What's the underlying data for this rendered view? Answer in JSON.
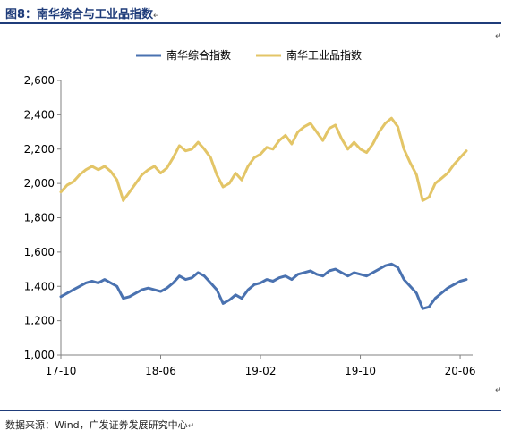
{
  "title": "图8：南华综合与工业品指数",
  "footer": "数据来源：Wind，广发证券发展研究中心",
  "para_mark": "↵",
  "chart_data": {
    "type": "line",
    "ylim": [
      1000,
      2600
    ],
    "yticks": [
      1000,
      1200,
      1400,
      1600,
      1800,
      2000,
      2200,
      2400,
      2600
    ],
    "ytick_labels": [
      "1,000",
      "1,200",
      "1,400",
      "1,600",
      "1,800",
      "2,000",
      "2,200",
      "2,400",
      "2,600"
    ],
    "xlim": [
      0,
      33
    ],
    "xticks": [
      0,
      8,
      16,
      24,
      32
    ],
    "xtick_labels": [
      "17-10",
      "18-06",
      "19-02",
      "19-10",
      "20-06"
    ],
    "legend_position": "top-center",
    "grid": false,
    "series": [
      {
        "name": "南华综合指数",
        "color": "#4a72b0",
        "x": [
          0,
          0.5,
          1,
          1.5,
          2,
          2.5,
          3,
          3.5,
          4,
          4.5,
          5,
          5.5,
          6,
          6.5,
          7,
          7.5,
          8,
          8.5,
          9,
          9.5,
          10,
          10.5,
          11,
          11.5,
          12,
          12.5,
          13,
          13.5,
          14,
          14.5,
          15,
          15.5,
          16,
          16.5,
          17,
          17.5,
          18,
          18.5,
          19,
          19.5,
          20,
          20.5,
          21,
          21.5,
          22,
          22.5,
          23,
          23.5,
          24,
          24.5,
          25,
          25.5,
          26,
          26.5,
          27,
          27.5,
          28,
          28.5,
          29,
          29.5,
          30,
          30.5,
          31,
          31.5,
          32,
          32.5
        ],
        "values": [
          1340,
          1360,
          1380,
          1400,
          1420,
          1430,
          1420,
          1440,
          1420,
          1400,
          1330,
          1340,
          1360,
          1380,
          1390,
          1380,
          1370,
          1390,
          1420,
          1460,
          1440,
          1450,
          1480,
          1460,
          1420,
          1380,
          1300,
          1320,
          1350,
          1330,
          1380,
          1410,
          1420,
          1440,
          1430,
          1450,
          1460,
          1440,
          1470,
          1480,
          1490,
          1470,
          1460,
          1490,
          1500,
          1480,
          1460,
          1480,
          1470,
          1460,
          1480,
          1500,
          1520,
          1530,
          1510,
          1440,
          1400,
          1360,
          1270,
          1280,
          1330,
          1360,
          1390,
          1410,
          1430,
          1440
        ]
      },
      {
        "name": "南华工业品指数",
        "color": "#e3c567",
        "x": [
          0,
          0.5,
          1,
          1.5,
          2,
          2.5,
          3,
          3.5,
          4,
          4.5,
          5,
          5.5,
          6,
          6.5,
          7,
          7.5,
          8,
          8.5,
          9,
          9.5,
          10,
          10.5,
          11,
          11.5,
          12,
          12.5,
          13,
          13.5,
          14,
          14.5,
          15,
          15.5,
          16,
          16.5,
          17,
          17.5,
          18,
          18.5,
          19,
          19.5,
          20,
          20.5,
          21,
          21.5,
          22,
          22.5,
          23,
          23.5,
          24,
          24.5,
          25,
          25.5,
          26,
          26.5,
          27,
          27.5,
          28,
          28.5,
          29,
          29.5,
          30,
          30.5,
          31,
          31.5,
          32,
          32.5
        ],
        "values": [
          1950,
          1990,
          2010,
          2050,
          2080,
          2100,
          2080,
          2100,
          2070,
          2020,
          1900,
          1950,
          2000,
          2050,
          2080,
          2100,
          2060,
          2090,
          2150,
          2220,
          2190,
          2200,
          2240,
          2200,
          2150,
          2050,
          1980,
          2000,
          2060,
          2020,
          2100,
          2150,
          2170,
          2210,
          2200,
          2250,
          2280,
          2230,
          2300,
          2330,
          2350,
          2300,
          2250,
          2320,
          2340,
          2260,
          2200,
          2240,
          2200,
          2180,
          2230,
          2300,
          2350,
          2380,
          2330,
          2200,
          2120,
          2050,
          1900,
          1920,
          2000,
          2030,
          2060,
          2110,
          2150,
          2190
        ]
      }
    ]
  }
}
